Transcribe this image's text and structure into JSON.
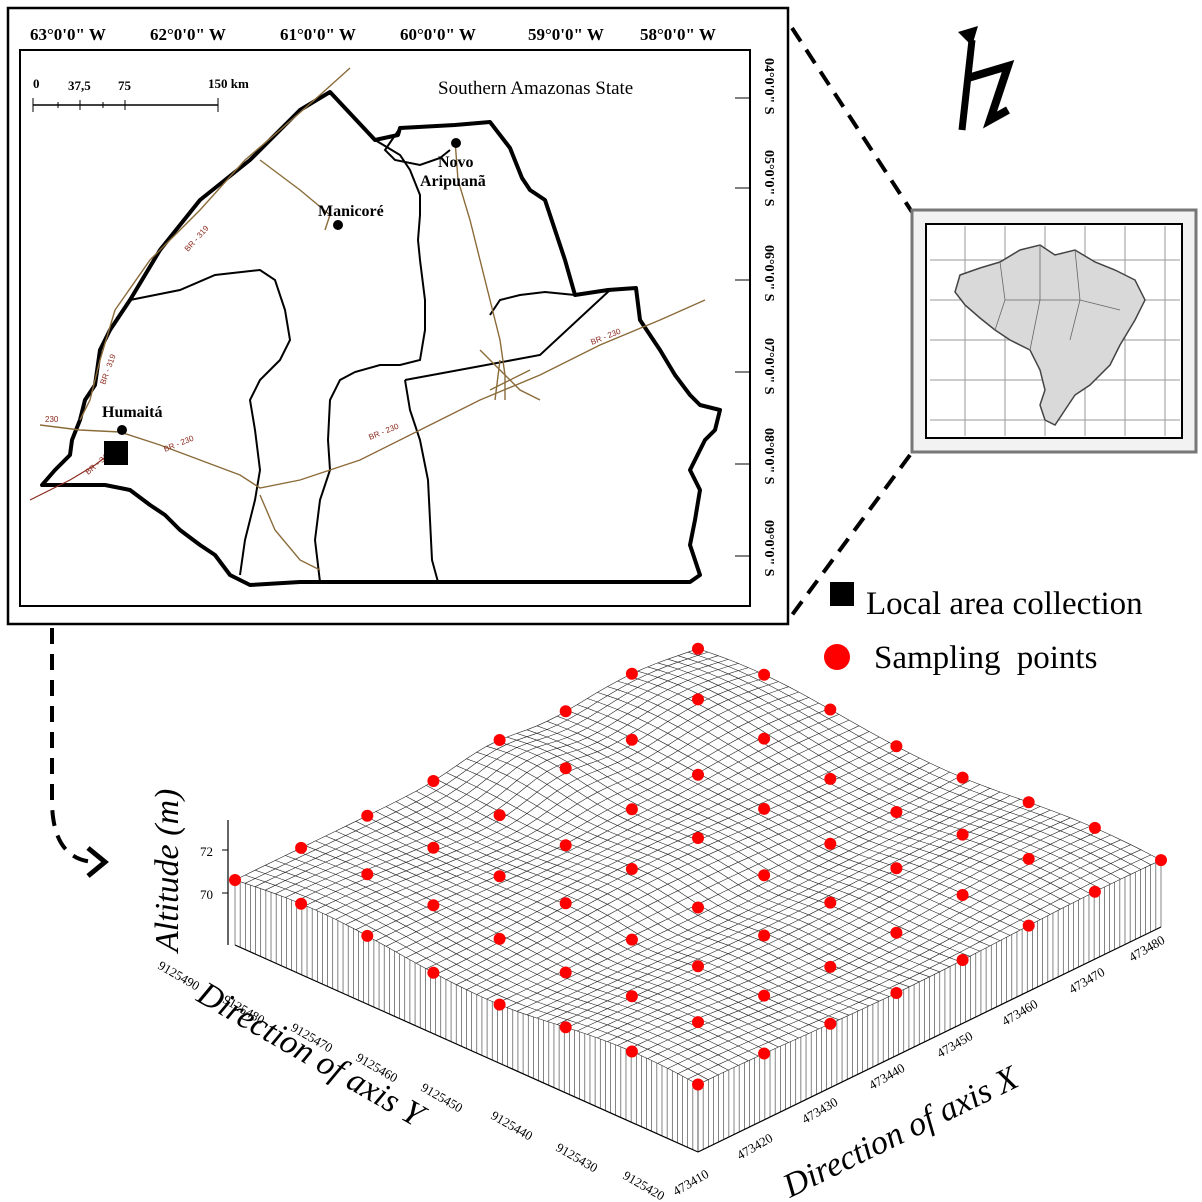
{
  "map": {
    "region_title": "Southern Amazonas State",
    "longitude_labels": [
      "63°0'0\" W",
      "62°0'0\" W",
      "61°0'0\" W",
      "60°0'0\" W",
      "59°0'0\" W",
      "58°0'0\" W"
    ],
    "latitude_labels": [
      "04°0'0\" S",
      "05°0'0\" S",
      "06°0'0\" S",
      "07°0'0\" S",
      "08°0'0\" S",
      "09°0'0\" S"
    ],
    "scale_bar": {
      "ticks": [
        "0",
        "37,5",
        "75"
      ],
      "end_label": "150 km"
    },
    "cities": [
      "Novo",
      "Aripuanã",
      "Manicoré",
      "Humaitá"
    ],
    "roads": [
      "BR - 319",
      "BR - 230",
      "BR - 230",
      "BR - 230",
      "230",
      "BR - 319",
      "BR - 319"
    ],
    "north_arrow": "N"
  },
  "legend": {
    "items": [
      {
        "label": "Local area collection",
        "symbol": "square",
        "color": "#000000"
      },
      {
        "label": "Sampling points",
        "symbol": "circle",
        "color": "#ff0000"
      }
    ]
  },
  "surface_plot": {
    "z_title": "Altitude (m)",
    "z_ticks": [
      "72",
      "70"
    ],
    "y_title": "Direction of axis Y",
    "y_ticks": [
      "9125490",
      "9125480",
      "9125470",
      "9125460",
      "9125450",
      "9125440",
      "9125430",
      "9125420"
    ],
    "x_title": "Direction of axis X",
    "x_ticks": [
      "473410",
      "473420",
      "473430",
      "473440",
      "473450",
      "473460",
      "473470",
      "473480"
    ],
    "point_color": "#ff0000"
  }
}
